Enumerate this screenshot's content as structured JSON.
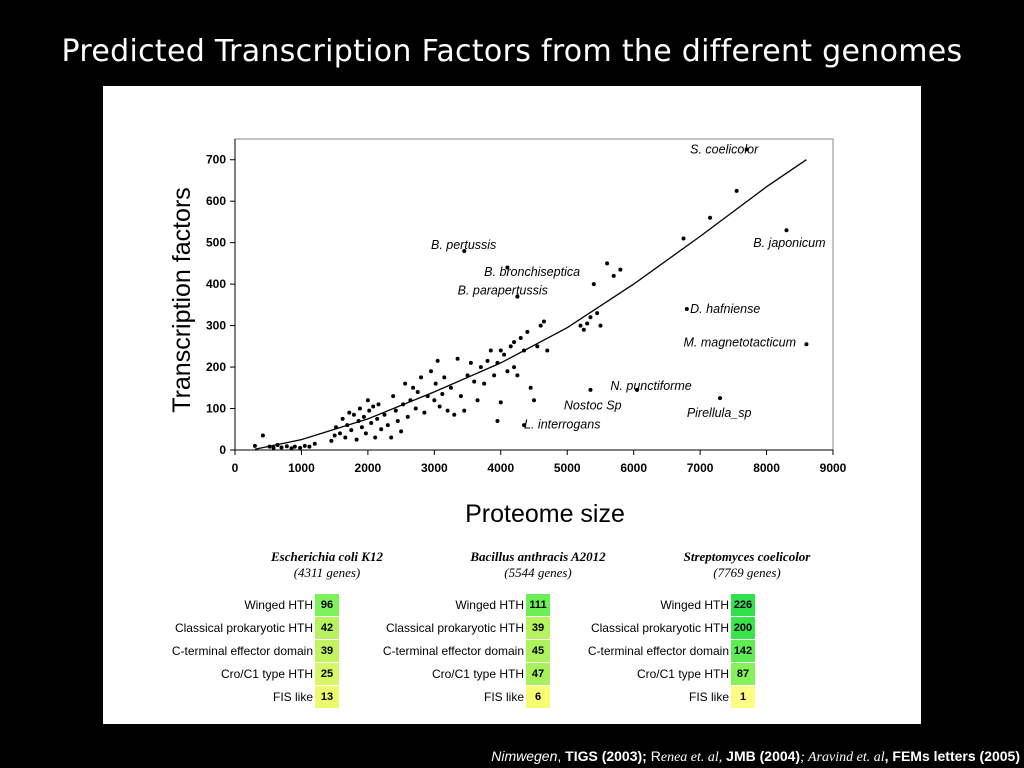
{
  "slide": {
    "title": "Predicted Transcription Factors from the different genomes"
  },
  "chart_data": {
    "type": "scatter",
    "xlabel": "Proteome size",
    "ylabel": "Transcription factors",
    "xlim": [
      0,
      9000
    ],
    "ylim": [
      0,
      750
    ],
    "xticks": [
      0,
      1000,
      2000,
      3000,
      4000,
      5000,
      6000,
      7000,
      8000,
      9000
    ],
    "yticks": [
      0,
      100,
      200,
      300,
      400,
      500,
      600,
      700
    ],
    "grid": false,
    "fit_curve": {
      "x": [
        300,
        1000,
        2000,
        3000,
        4000,
        5000,
        6000,
        7000,
        8000,
        8600
      ],
      "y": [
        2,
        25,
        75,
        140,
        210,
        295,
        400,
        515,
        635,
        700
      ]
    },
    "points": [
      [
        300,
        10
      ],
      [
        420,
        35
      ],
      [
        520,
        8
      ],
      [
        580,
        5
      ],
      [
        640,
        12
      ],
      [
        700,
        6
      ],
      [
        780,
        9
      ],
      [
        850,
        4
      ],
      [
        900,
        8
      ],
      [
        980,
        5
      ],
      [
        1050,
        10
      ],
      [
        1120,
        8
      ],
      [
        1200,
        15
      ],
      [
        1450,
        22
      ],
      [
        1500,
        35
      ],
      [
        1520,
        55
      ],
      [
        1580,
        40
      ],
      [
        1620,
        75
      ],
      [
        1660,
        30
      ],
      [
        1690,
        60
      ],
      [
        1720,
        90
      ],
      [
        1750,
        48
      ],
      [
        1790,
        85
      ],
      [
        1830,
        25
      ],
      [
        1860,
        70
      ],
      [
        1880,
        100
      ],
      [
        1910,
        55
      ],
      [
        1940,
        80
      ],
      [
        1970,
        40
      ],
      [
        2000,
        120
      ],
      [
        2020,
        95
      ],
      [
        2050,
        65
      ],
      [
        2080,
        105
      ],
      [
        2110,
        30
      ],
      [
        2140,
        75
      ],
      [
        2160,
        110
      ],
      [
        2200,
        50
      ],
      [
        2250,
        85
      ],
      [
        2300,
        60
      ],
      [
        2350,
        30
      ],
      [
        2380,
        130
      ],
      [
        2420,
        95
      ],
      [
        2450,
        70
      ],
      [
        2500,
        45
      ],
      [
        2530,
        110
      ],
      [
        2560,
        160
      ],
      [
        2600,
        80
      ],
      [
        2640,
        120
      ],
      [
        2680,
        150
      ],
      [
        2720,
        100
      ],
      [
        2750,
        140
      ],
      [
        2800,
        175
      ],
      [
        2850,
        90
      ],
      [
        2900,
        130
      ],
      [
        2950,
        190
      ],
      [
        3000,
        120
      ],
      [
        3020,
        160
      ],
      [
        3050,
        215
      ],
      [
        3080,
        105
      ],
      [
        3120,
        135
      ],
      [
        3150,
        175
      ],
      [
        3200,
        95
      ],
      [
        3250,
        150
      ],
      [
        3300,
        85
      ],
      [
        3350,
        220
      ],
      [
        3400,
        130
      ],
      [
        3450,
        95
      ],
      [
        3500,
        180
      ],
      [
        3550,
        210
      ],
      [
        3600,
        165
      ],
      [
        3650,
        120
      ],
      [
        3700,
        200
      ],
      [
        3750,
        160
      ],
      [
        3800,
        215
      ],
      [
        3850,
        240
      ],
      [
        3900,
        180
      ],
      [
        3950,
        210
      ],
      [
        4000,
        115
      ],
      [
        4050,
        230
      ],
      [
        4100,
        190
      ],
      [
        4150,
        250
      ],
      [
        4200,
        200
      ],
      [
        4250,
        180
      ],
      [
        4300,
        270
      ],
      [
        4350,
        240
      ],
      [
        4400,
        285
      ],
      [
        4450,
        150
      ],
      [
        4500,
        120
      ],
      [
        4550,
        250
      ],
      [
        4600,
        300
      ],
      [
        4650,
        310
      ],
      [
        4700,
        240
      ],
      [
        4000,
        240
      ],
      [
        4200,
        260
      ],
      [
        5200,
        300
      ],
      [
        5250,
        290
      ],
      [
        5300,
        305
      ],
      [
        5350,
        320
      ],
      [
        5400,
        400
      ],
      [
        5450,
        330
      ],
      [
        5500,
        300
      ],
      [
        5600,
        450
      ],
      [
        5700,
        420
      ],
      [
        5800,
        435
      ],
      [
        4250,
        370
      ],
      [
        4100,
        440
      ],
      [
        3450,
        480
      ],
      [
        3950,
        70
      ],
      [
        4350,
        60
      ],
      [
        5350,
        145
      ],
      [
        6050,
        145
      ],
      [
        6750,
        510
      ],
      [
        7150,
        560
      ],
      [
        7550,
        625
      ],
      [
        7700,
        725
      ],
      [
        8300,
        530
      ],
      [
        6800,
        340
      ],
      [
        7300,
        125
      ],
      [
        8600,
        255
      ]
    ],
    "annotations": [
      {
        "text": "S. coelicolor",
        "x": 6850,
        "y": 715
      },
      {
        "text": "B. japonicum",
        "x": 7800,
        "y": 490
      },
      {
        "text": "B. pertussis",
        "x": 2950,
        "y": 485
      },
      {
        "text": "B. bronchiseptica",
        "x": 3750,
        "y": 420
      },
      {
        "text": "B. parapertussis",
        "x": 3350,
        "y": 375
      },
      {
        "text": "D. hafniense",
        "x": 6850,
        "y": 330
      },
      {
        "text": "M. magnetotacticum",
        "x": 6750,
        "y": 250
      },
      {
        "text": "N. punctiforme",
        "x": 5650,
        "y": 145
      },
      {
        "text": "Nostoc Sp",
        "x": 4950,
        "y": 98
      },
      {
        "text": "Pirellula_sp",
        "x": 6800,
        "y": 80
      },
      {
        "text": "L. interrogans",
        "x": 4350,
        "y": 52
      }
    ]
  },
  "tables": [
    {
      "organism": "Escherichia coli K12",
      "genes": "(4311 genes)",
      "rows": [
        {
          "label": "Winged HTH",
          "value": "96",
          "color": "#7ef25a"
        },
        {
          "label": "Classical prokaryotic HTH",
          "value": "42",
          "color": "#b8f35f"
        },
        {
          "label": "C-terminal effector domain",
          "value": "39",
          "color": "#c2f462"
        },
        {
          "label": "Cro/C1 type HTH",
          "value": "25",
          "color": "#d6f766"
        },
        {
          "label": "FIS like",
          "value": "13",
          "color": "#ecfb6c"
        }
      ]
    },
    {
      "organism": "Bacillus anthracis A2012",
      "genes": "(5544 genes)",
      "rows": [
        {
          "label": "Winged HTH",
          "value": "111",
          "color": "#6cef56"
        },
        {
          "label": "Classical prokaryotic HTH",
          "value": "39",
          "color": "#b6f35f"
        },
        {
          "label": "C-terminal effector domain",
          "value": "45",
          "color": "#adf25d"
        },
        {
          "label": "Cro/C1 type HTH",
          "value": "47",
          "color": "#a8f15c"
        },
        {
          "label": "FIS like",
          "value": "6",
          "color": "#f7fd72"
        }
      ]
    },
    {
      "organism": "Streptomyces coelicolor",
      "genes": "(7769 genes)",
      "rows": [
        {
          "label": "Winged HTH",
          "value": "226",
          "color": "#2fe14a"
        },
        {
          "label": "Classical prokaryotic HTH",
          "value": "200",
          "color": "#3ae54c"
        },
        {
          "label": "C-terminal effector domain",
          "value": "142",
          "color": "#5fed54"
        },
        {
          "label": "Cro/C1 type HTH",
          "value": "87",
          "color": "#86f259"
        },
        {
          "label": "FIS like",
          "value": "1",
          "color": "#fdfd85"
        }
      ]
    }
  ],
  "citation": {
    "author1": "Nimwegen",
    "journal1": "TIGS (2003);",
    "author2_first": "R",
    "author2_rest": "enea et. al,",
    "journal2": "JMB (2004)",
    "author3": "; Aravind et. al",
    "journal3": ", FEMs letters (2005)"
  }
}
